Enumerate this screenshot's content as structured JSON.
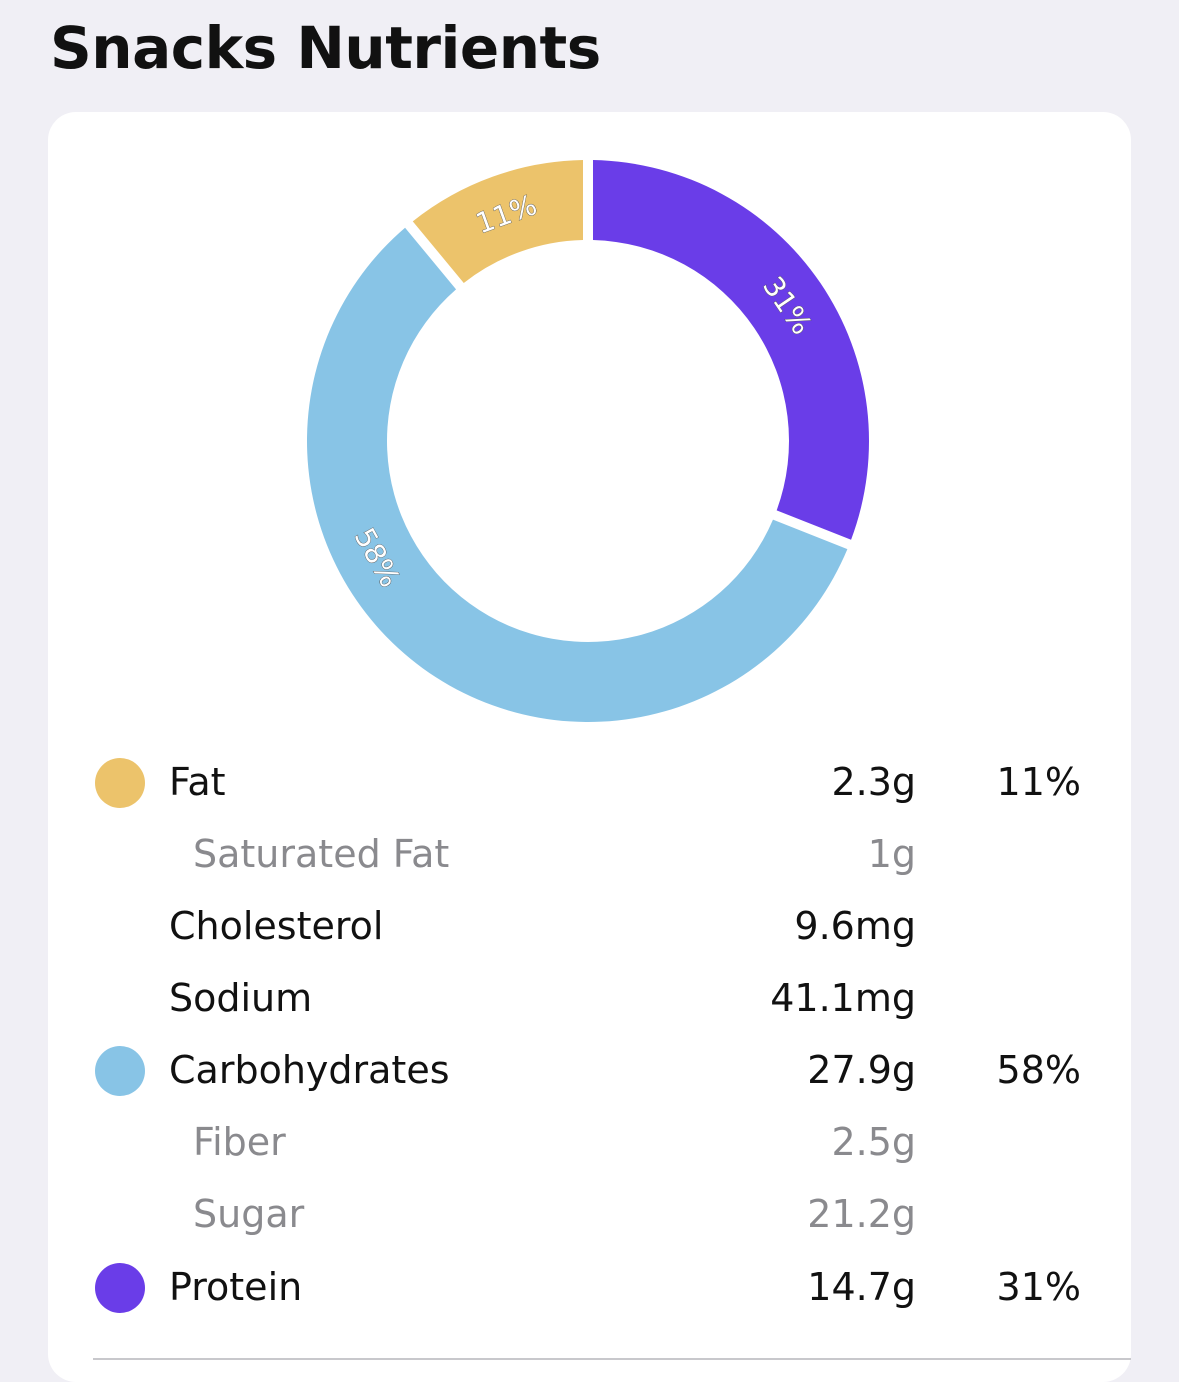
{
  "header": {
    "title": "Snacks Nutrients"
  },
  "chart_data": {
    "type": "pie",
    "donut": true,
    "start": "top",
    "direction": "clockwise",
    "slices": [
      {
        "label": "31%",
        "value": 31,
        "color": "#6a3de8"
      },
      {
        "label": "58%",
        "value": 58,
        "color": "#88c4e6"
      },
      {
        "label": "11%",
        "value": 11,
        "color": "#ecc36b"
      }
    ]
  },
  "nutrients": [
    {
      "name": "Fat",
      "amount": "2.3g",
      "percent": "11%",
      "color": "#ecc36b",
      "sub": false
    },
    {
      "name": "Saturated Fat",
      "amount": "1g",
      "percent": "",
      "color": "",
      "sub": true
    },
    {
      "name": "Cholesterol",
      "amount": "9.6mg",
      "percent": "",
      "color": "",
      "sub": false
    },
    {
      "name": "Sodium",
      "amount": "41.1mg",
      "percent": "",
      "color": "",
      "sub": false
    },
    {
      "name": "Carbohydrates",
      "amount": "27.9g",
      "percent": "58%",
      "color": "#88c4e6",
      "sub": false
    },
    {
      "name": "Fiber",
      "amount": "2.5g",
      "percent": "",
      "color": "",
      "sub": true
    },
    {
      "name": "Sugar",
      "amount": "21.2g",
      "percent": "",
      "color": "",
      "sub": true
    },
    {
      "name": "Protein",
      "amount": "14.7g",
      "percent": "31%",
      "color": "#6a3de8",
      "sub": false
    }
  ]
}
